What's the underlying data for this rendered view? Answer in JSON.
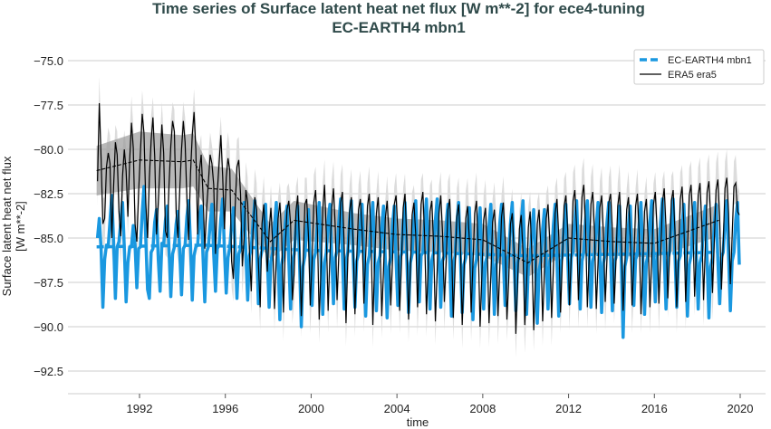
{
  "chart_data": {
    "type": "line",
    "title": "Time series of Surface latent heat net flux [W m**-2] for ece4-tuning",
    "subtitle": "EC-EARTH4 mbn1",
    "xlabel": "time",
    "ylabel": "Surface latent heat net flux",
    "ylabel_units": "[W m**-2]",
    "xlim": [
      1989.5,
      2021.2
    ],
    "ylim": [
      -93.5,
      -74.8
    ],
    "x_ticks": [
      1992,
      1996,
      2000,
      2004,
      2008,
      2012,
      2016,
      2020
    ],
    "y_ticks": [
      -75.0,
      -77.5,
      -80.0,
      -82.5,
      -85.0,
      -87.5,
      -90.0,
      -92.5
    ],
    "grid": "horizontal",
    "legend_placement": "top-right",
    "colors": {
      "model": "#1a98e0",
      "obs": "#000000",
      "band_light": "#dcdcdc",
      "band_dark": "#9a9a9a",
      "grid": "#cccccc",
      "title": "#2f4a4a"
    },
    "start_year": 1990,
    "legend": [
      {
        "label": "EC-EARTH4 mbn1",
        "style": "dashed-blue"
      },
      {
        "label": "ERA5 era5",
        "style": "solid-black"
      }
    ],
    "era5_monthly_spread": 1.6,
    "era5_rolling_mean": {
      "x": [
        1990,
        1992,
        1994,
        1994.5,
        1995.2,
        1996.3,
        1998.1,
        1999.2,
        2002,
        2004,
        2006,
        2008,
        2010.1,
        2012,
        2014,
        2016,
        2019
      ],
      "y": [
        -81.2,
        -80.6,
        -80.7,
        -80.6,
        -82.2,
        -82.3,
        -85.2,
        -84.0,
        -84.5,
        -84.8,
        -84.9,
        -85.1,
        -86.4,
        -85.0,
        -85.2,
        -85.3,
        -84.0
      ],
      "spread": [
        1.4,
        1.6,
        1.5,
        1.5,
        1.3,
        1.2,
        1.0,
        1.1,
        0.9,
        0.9,
        0.9,
        0.9,
        0.8,
        0.8,
        0.8,
        0.8,
        0.9
      ]
    },
    "model_rolling_mean": {
      "x": [
        1990,
        1995,
        2000,
        2005,
        2010,
        2015,
        2019
      ],
      "y": [
        -85.5,
        -85.4,
        -85.7,
        -85.8,
        -86.0,
        -85.9,
        -85.8
      ]
    },
    "series": [
      {
        "name": "EC-EARTH4 mbn1",
        "values": [
          [
            -85.0,
            -83.9,
            -85.6,
            -88.9,
            -86.2,
            -85.4,
            -85.5,
            -84.0,
            -82.6,
            -85.2,
            -88.4,
            -85.5
          ],
          [
            -85.2,
            -84.1,
            -83.0,
            -85.6,
            -88.6,
            -86.4,
            -85.5,
            -85.5,
            -84.3,
            -85.4,
            -87.8,
            -85.6
          ],
          [
            -85.5,
            -83.6,
            -82.1,
            -85.0,
            -87.9,
            -88.4,
            -85.8,
            -85.6,
            -84.1,
            -83.4,
            -86.2,
            -88.0
          ],
          [
            -85.3,
            -85.4,
            -84.0,
            -83.2,
            -85.7,
            -88.3,
            -85.9,
            -85.5,
            -84.2,
            -83.5,
            -85.8,
            -88.2
          ],
          [
            -85.6,
            -85.4,
            -83.8,
            -82.9,
            -85.3,
            -88.5,
            -86.0,
            -85.5,
            -85.4,
            -84.0,
            -83.2,
            -86.0
          ],
          [
            -88.6,
            -85.8,
            -85.5,
            -84.2,
            -83.1,
            -85.9,
            -88.0,
            -85.6,
            -85.4,
            -83.9,
            -82.8,
            -85.7
          ],
          [
            -88.1,
            -86.1,
            -85.5,
            -84.3,
            -83.3,
            -85.6,
            -88.4,
            -85.9,
            -85.6,
            -84.2,
            -83.0,
            -85.9
          ],
          [
            -88.5,
            -86.0,
            -85.6,
            -84.1,
            -82.9,
            -85.5,
            -88.7,
            -86.2,
            -85.7,
            -84.0,
            -83.1,
            -86.1
          ],
          [
            -88.9,
            -86.3,
            -85.8,
            -84.3,
            -83.0,
            -86.0,
            -89.6,
            -86.5,
            -85.9,
            -84.2,
            -83.2,
            -86.2
          ],
          [
            -89.0,
            -86.4,
            -85.9,
            -84.4,
            -83.2,
            -86.3,
            -90.0,
            -86.6,
            -86.0,
            -84.4,
            -83.4,
            -86.4
          ],
          [
            -88.8,
            -86.2,
            -85.8,
            -84.2,
            -83.0,
            -86.1,
            -89.3,
            -86.4,
            -85.8,
            -84.1,
            -83.1,
            -86.0
          ],
          [
            -88.7,
            -86.1,
            -85.7,
            -84.1,
            -82.8,
            -85.9,
            -89.0,
            -86.3,
            -85.8,
            -84.0,
            -82.9,
            -86.0
          ],
          [
            -88.9,
            -86.3,
            -85.9,
            -84.3,
            -83.1,
            -86.2,
            -89.4,
            -86.5,
            -86.0,
            -84.2,
            -83.0,
            -86.1
          ],
          [
            -89.1,
            -86.4,
            -86.0,
            -84.4,
            -83.2,
            -86.3,
            -89.5,
            -86.6,
            -86.1,
            -84.3,
            -83.2,
            -86.2
          ],
          [
            -88.8,
            -86.2,
            -85.9,
            -84.2,
            -83.0,
            -86.1,
            -89.2,
            -86.4,
            -85.9,
            -84.1,
            -82.9,
            -86.0
          ],
          [
            -88.6,
            -86.0,
            -85.8,
            -84.1,
            -82.8,
            -86.0,
            -89.0,
            -86.3,
            -85.8,
            -84.0,
            -82.8,
            -85.9
          ],
          [
            -88.9,
            -86.3,
            -86.0,
            -84.3,
            -83.1,
            -86.2,
            -89.4,
            -86.5,
            -86.0,
            -84.2,
            -83.0,
            -86.1
          ],
          [
            -89.2,
            -86.5,
            -86.1,
            -84.5,
            -83.3,
            -86.4,
            -89.6,
            -86.7,
            -86.2,
            -84.4,
            -83.3,
            -86.3
          ],
          [
            -89.0,
            -86.4,
            -86.0,
            -84.3,
            -83.1,
            -86.2,
            -89.3,
            -86.5,
            -86.0,
            -84.2,
            -83.1,
            -86.1
          ],
          [
            -88.8,
            -86.2,
            -85.9,
            -84.2,
            -83.0,
            -86.1,
            -89.1,
            -86.4,
            -85.9,
            -84.1,
            -82.9,
            -86.0
          ],
          [
            -89.3,
            -86.6,
            -86.2,
            -84.6,
            -83.4,
            -86.5,
            -89.8,
            -86.8,
            -86.3,
            -84.5,
            -83.4,
            -86.4
          ],
          [
            -89.0,
            -86.3,
            -86.0,
            -84.3,
            -83.1,
            -86.2,
            -89.4,
            -86.5,
            -86.0,
            -84.2,
            -83.1,
            -86.1
          ],
          [
            -88.7,
            -86.1,
            -85.8,
            -84.1,
            -82.9,
            -86.0,
            -89.0,
            -86.3,
            -85.8,
            -84.0,
            -82.9,
            -85.9
          ],
          [
            -88.9,
            -86.3,
            -85.9,
            -84.3,
            -83.0,
            -86.1,
            -89.2,
            -86.4,
            -85.9,
            -84.1,
            -83.0,
            -86.0
          ],
          [
            -89.1,
            -86.4,
            -86.1,
            -84.4,
            -83.2,
            -86.3,
            -90.6,
            -86.6,
            -86.1,
            -84.3,
            -83.2,
            -86.2
          ],
          [
            -88.8,
            -86.2,
            -85.9,
            -84.2,
            -83.0,
            -86.1,
            -89.3,
            -86.4,
            -85.9,
            -84.1,
            -82.9,
            -86.0
          ],
          [
            -88.6,
            -86.0,
            -85.8,
            -84.1,
            -82.8,
            -85.9,
            -89.0,
            -86.2,
            -85.8,
            -84.0,
            -82.8,
            -85.9
          ],
          [
            -88.9,
            -86.3,
            -86.0,
            -84.3,
            -83.1,
            -86.2,
            -89.4,
            -86.5,
            -86.0,
            -84.2,
            -83.0,
            -86.1
          ],
          [
            -89.0,
            -86.4,
            -86.0,
            -84.4,
            -83.2,
            -86.3,
            -89.5,
            -86.6,
            -86.1,
            -84.3,
            -83.1,
            -86.2
          ],
          [
            -88.7,
            -86.1,
            -85.8,
            -84.1,
            -82.9,
            -86.0,
            -89.1,
            -86.3,
            -85.8,
            -84.0,
            -83.0,
            -86.5
          ]
        ]
      },
      {
        "name": "ERA5 era5",
        "values": [
          [
            -81.8,
            -77.4,
            -80.5,
            -84.2,
            -83.9,
            -81.0,
            -80.2,
            -80.8,
            -85.0,
            -82.1,
            -79.6,
            -80.3
          ],
          [
            -83.5,
            -84.9,
            -81.5,
            -80.0,
            -81.2,
            -83.8,
            -80.6,
            -78.5,
            -79.9,
            -84.2,
            -85.2,
            -82.4
          ],
          [
            -80.2,
            -78.0,
            -79.1,
            -83.0,
            -85.0,
            -81.6,
            -79.5,
            -78.2,
            -80.4,
            -84.8,
            -83.0,
            -80.8
          ],
          [
            -78.6,
            -80.2,
            -84.6,
            -85.0,
            -82.0,
            -79.8,
            -78.4,
            -79.0,
            -83.6,
            -85.0,
            -82.3,
            -80.0
          ],
          [
            -78.4,
            -79.6,
            -82.8,
            -85.1,
            -81.4,
            -79.2,
            -77.9,
            -80.0,
            -84.8,
            -81.2,
            -80.3,
            -82.5
          ],
          [
            -85.6,
            -83.4,
            -81.9,
            -80.3,
            -80.8,
            -82.0,
            -85.9,
            -82.4,
            -80.8,
            -79.2,
            -81.5,
            -84.5
          ],
          [
            -81.6,
            -80.5,
            -81.2,
            -86.3,
            -87.3,
            -83.2,
            -81.0,
            -80.6,
            -82.5,
            -86.6,
            -85.0,
            -82.3
          ],
          [
            -83.0,
            -85.8,
            -88.0,
            -84.6,
            -82.7,
            -83.4,
            -86.4,
            -88.9,
            -84.2,
            -83.1,
            -85.1,
            -86.9
          ],
          [
            -84.6,
            -83.3,
            -85.3,
            -89.0,
            -86.2,
            -83.9,
            -83.0,
            -84.8,
            -89.2,
            -85.6,
            -83.4,
            -82.9
          ],
          [
            -84.2,
            -88.5,
            -87.0,
            -83.5,
            -82.6,
            -85.4,
            -89.4,
            -86.5,
            -83.1,
            -82.8,
            -84.9,
            -88.8
          ],
          [
            -86.4,
            -83.0,
            -82.3,
            -84.6,
            -89.6,
            -86.8,
            -83.4,
            -82.0,
            -84.8,
            -89.1,
            -86.0,
            -83.3
          ],
          [
            -82.2,
            -84.4,
            -88.5,
            -85.9,
            -83.0,
            -82.4,
            -85.5,
            -89.8,
            -86.2,
            -83.5,
            -82.7,
            -85.3
          ],
          [
            -89.3,
            -86.1,
            -83.4,
            -82.8,
            -84.5,
            -88.7,
            -86.0,
            -83.2,
            -82.5,
            -84.9,
            -89.9,
            -86.4
          ],
          [
            -83.6,
            -82.7,
            -85.0,
            -89.4,
            -86.8,
            -83.9,
            -82.9,
            -84.7,
            -88.8,
            -86.3,
            -83.1,
            -82.6
          ],
          [
            -84.6,
            -89.1,
            -86.5,
            -83.3,
            -82.5,
            -85.1,
            -89.6,
            -86.8,
            -83.7,
            -83.0,
            -84.8,
            -88.9
          ],
          [
            -86.2,
            -83.1,
            -82.4,
            -85.0,
            -89.3,
            -86.6,
            -83.5,
            -82.9,
            -85.4,
            -89.7,
            -86.9,
            -83.6
          ],
          [
            -82.6,
            -84.7,
            -88.6,
            -86.4,
            -83.4,
            -82.8,
            -85.2,
            -89.5,
            -86.7,
            -83.8,
            -83.1,
            -85.3
          ],
          [
            -89.9,
            -87.0,
            -83.9,
            -83.2,
            -85.1,
            -89.2,
            -86.5,
            -83.6,
            -82.9,
            -85.6,
            -90.0,
            -87.1
          ],
          [
            -84.0,
            -83.3,
            -85.5,
            -89.8,
            -87.2,
            -84.1,
            -83.4,
            -85.2,
            -89.4,
            -86.8,
            -83.8,
            -83.0
          ],
          [
            -85.0,
            -89.6,
            -87.4,
            -84.2,
            -83.6,
            -85.7,
            -90.4,
            -87.5,
            -84.5,
            -83.7,
            -85.8,
            -89.9
          ],
          [
            -87.6,
            -84.4,
            -83.5,
            -86.0,
            -90.2,
            -87.3,
            -84.2,
            -83.4,
            -85.6,
            -89.7,
            -86.9,
            -83.9
          ],
          [
            -83.1,
            -85.2,
            -89.5,
            -86.7,
            -83.6,
            -82.8,
            -84.9,
            -89.2,
            -86.3,
            -83.2,
            -82.6,
            -84.5
          ],
          [
            -88.8,
            -86.0,
            -82.9,
            -82.3,
            -84.4,
            -88.5,
            -85.8,
            -82.7,
            -82.0,
            -84.3,
            -88.9,
            -86.2
          ],
          [
            -83.1,
            -82.4,
            -84.6,
            -89.0,
            -86.4,
            -83.3,
            -82.6,
            -84.8,
            -88.6,
            -86.1,
            -83.0,
            -82.5
          ],
          [
            -84.6,
            -88.7,
            -86.3,
            -83.2,
            -82.4,
            -84.7,
            -89.1,
            -86.5,
            -83.4,
            -82.7,
            -84.9,
            -88.8
          ],
          [
            -86.4,
            -83.2,
            -82.5,
            -84.8,
            -89.3,
            -86.6,
            -83.5,
            -82.8,
            -85.0,
            -88.9,
            -86.2,
            -83.1
          ],
          [
            -82.4,
            -84.5,
            -88.7,
            -86.0,
            -83.0,
            -82.2,
            -84.4,
            -88.4,
            -85.9,
            -82.9,
            -82.3,
            -84.6
          ],
          [
            -88.9,
            -86.1,
            -82.8,
            -82.1,
            -84.2,
            -88.6,
            -85.7,
            -82.6,
            -82.0,
            -84.0,
            -88.3,
            -85.6
          ],
          [
            -82.6,
            -81.9,
            -84.1,
            -88.5,
            -85.5,
            -82.4,
            -81.8,
            -83.9,
            -88.1,
            -85.2,
            -82.3,
            -81.7
          ],
          [
            -83.8,
            -87.9,
            -85.3,
            -82.2,
            -81.6,
            -83.6,
            -87.6,
            -84.9,
            -82.1,
            -81.9,
            -83.5,
            -83.7
          ]
        ]
      }
    ]
  }
}
